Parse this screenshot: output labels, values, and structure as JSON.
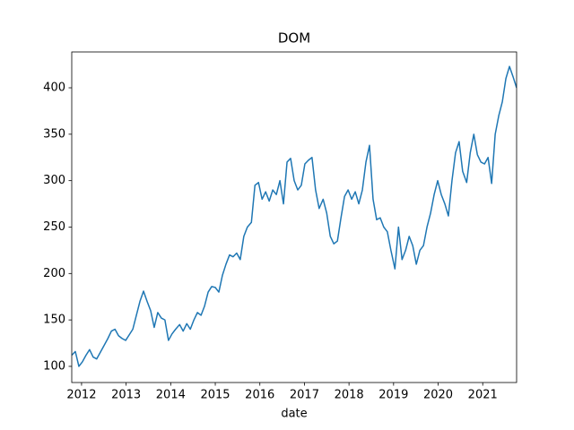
{
  "chart_data": {
    "type": "line",
    "title": "DOM",
    "x_label": "date",
    "x": [
      2011.78,
      2011.86,
      2011.94,
      2012.02,
      2012.1,
      2012.18,
      2012.26,
      2012.34,
      2012.42,
      2012.5,
      2012.59,
      2012.67,
      2012.75,
      2012.83,
      2012.91,
      2012.99,
      2013.07,
      2013.15,
      2013.23,
      2013.31,
      2013.39,
      2013.47,
      2013.55,
      2013.63,
      2013.71,
      2013.79,
      2013.87,
      2013.95,
      2014.03,
      2014.11,
      2014.2,
      2014.28,
      2014.36,
      2014.44,
      2014.52,
      2014.6,
      2014.68,
      2014.76,
      2014.84,
      2014.92,
      2015.0,
      2015.08,
      2015.16,
      2015.24,
      2015.32,
      2015.4,
      2015.48,
      2015.56,
      2015.64,
      2015.72,
      2015.81,
      2015.89,
      2015.97,
      2016.05,
      2016.13,
      2016.21,
      2016.29,
      2016.37,
      2016.45,
      2016.53,
      2016.61,
      2016.69,
      2016.77,
      2016.85,
      2016.93,
      2017.01,
      2017.09,
      2017.17,
      2017.25,
      2017.33,
      2017.42,
      2017.5,
      2017.58,
      2017.66,
      2017.74,
      2017.82,
      2017.9,
      2017.98,
      2018.06,
      2018.14,
      2018.22,
      2018.3,
      2018.38,
      2018.46,
      2018.54,
      2018.62,
      2018.7,
      2018.78,
      2018.86,
      2018.94,
      2019.03,
      2019.11,
      2019.19,
      2019.27,
      2019.35,
      2019.43,
      2019.51,
      2019.59,
      2019.67,
      2019.75,
      2019.83,
      2019.91,
      2019.99,
      2020.07,
      2020.15,
      2020.23,
      2020.31,
      2020.39,
      2020.47,
      2020.55,
      2020.64,
      2020.72,
      2020.8,
      2020.88,
      2020.96,
      2021.04,
      2021.12,
      2021.2,
      2021.28,
      2021.36,
      2021.44,
      2021.52,
      2021.6,
      2021.68,
      2021.76
    ],
    "series": [
      {
        "color": "#1f77b4",
        "values": [
          112,
          116,
          100,
          105,
          112,
          118,
          110,
          108,
          115,
          122,
          130,
          138,
          140,
          133,
          130,
          128,
          134,
          140,
          155,
          170,
          181,
          170,
          160,
          142,
          158,
          152,
          150,
          128,
          135,
          140,
          145,
          138,
          146,
          140,
          150,
          158,
          155,
          165,
          180,
          186,
          185,
          180,
          198,
          210,
          220,
          218,
          222,
          215,
          240,
          250,
          255,
          295,
          298,
          280,
          288,
          278,
          290,
          285,
          300,
          275,
          320,
          324,
          300,
          290,
          295,
          318,
          322,
          325,
          290,
          270,
          280,
          265,
          240,
          232,
          235,
          260,
          283,
          290,
          280,
          288,
          275,
          290,
          320,
          338,
          280,
          258,
          260,
          250,
          245,
          225,
          205,
          250,
          215,
          225,
          240,
          230,
          210,
          225,
          230,
          250,
          265,
          285,
          300,
          285,
          275,
          262,
          300,
          330,
          342,
          310,
          298,
          330,
          350,
          328,
          320,
          318,
          325,
          297,
          350,
          370,
          385,
          410,
          423,
          412,
          400
        ]
      }
    ],
    "xlim": [
      2011.78,
      2021.76
    ],
    "xticks": [
      2012,
      2013,
      2014,
      2015,
      2016,
      2017,
      2018,
      2019,
      2020,
      2021
    ],
    "ylim": [
      82.6,
      438.6
    ],
    "yticks": [
      100,
      150,
      200,
      250,
      300,
      350,
      400
    ]
  }
}
